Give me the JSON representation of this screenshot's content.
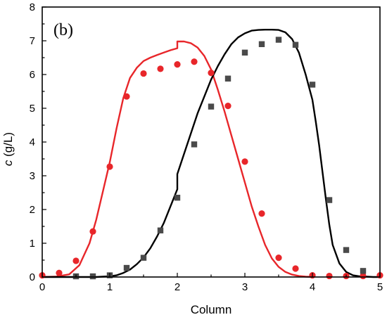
{
  "chart_data": {
    "type": "scatter",
    "panel_label": "(b)",
    "xlabel": "Column",
    "ylabel_italic": "c",
    "ylabel_units": " (g/L)",
    "xlim": [
      0,
      5
    ],
    "ylim": [
      0,
      8
    ],
    "xticks": [
      0,
      1,
      2,
      3,
      4,
      5
    ],
    "yticks": [
      0,
      1,
      2,
      3,
      4,
      5,
      6,
      7,
      8
    ],
    "grid": false,
    "legend": "none",
    "series": [
      {
        "kind": "points",
        "marker": "circle",
        "color": "#e8262a",
        "x": [
          0,
          0.25,
          0.5,
          0.75,
          1.0,
          1.25,
          1.5,
          1.75,
          2.0,
          2.25,
          2.5,
          2.75,
          3.0,
          3.25,
          3.5,
          3.75,
          4.0,
          4.25,
          4.5,
          4.75,
          5.0
        ],
        "y": [
          0.05,
          0.12,
          0.48,
          1.35,
          3.27,
          5.35,
          6.03,
          6.17,
          6.3,
          6.38,
          6.05,
          5.07,
          3.42,
          1.88,
          0.57,
          0.25,
          0.05,
          0.03,
          0.03,
          0.03,
          0.05
        ]
      },
      {
        "kind": "points",
        "marker": "square",
        "color": "#4a4a4a",
        "x": [
          0.5,
          0.75,
          1.0,
          1.25,
          1.5,
          1.75,
          2.0,
          2.25,
          2.5,
          2.75,
          3.0,
          3.25,
          3.5,
          3.75,
          4.0,
          4.25,
          4.5,
          4.75
        ],
        "y": [
          0.02,
          0.02,
          0.05,
          0.27,
          0.57,
          1.38,
          2.35,
          3.93,
          5.05,
          5.88,
          6.65,
          6.9,
          7.03,
          6.88,
          5.7,
          2.28,
          0.8,
          0.18
        ]
      },
      {
        "kind": "line",
        "color": "#e8262a",
        "x": [
          0,
          0.2,
          0.4,
          0.55,
          0.7,
          0.8,
          0.9,
          1.0,
          1.1,
          1.2,
          1.3,
          1.4,
          1.5,
          1.6,
          1.7,
          1.8,
          1.9,
          2.0,
          2.0,
          2.1,
          2.2,
          2.3,
          2.4,
          2.5,
          2.6,
          2.7,
          2.8,
          2.9,
          3.0,
          3.1,
          3.2,
          3.3,
          3.4,
          3.5,
          3.6,
          3.7,
          3.8,
          3.9,
          4.0
        ],
        "y": [
          0,
          0.01,
          0.08,
          0.35,
          1.0,
          1.7,
          2.55,
          3.4,
          4.4,
          5.3,
          5.9,
          6.2,
          6.4,
          6.5,
          6.58,
          6.65,
          6.72,
          6.78,
          6.98,
          6.98,
          6.93,
          6.8,
          6.55,
          6.15,
          5.55,
          4.9,
          4.2,
          3.5,
          2.8,
          2.1,
          1.5,
          0.95,
          0.55,
          0.3,
          0.15,
          0.07,
          0.03,
          0.01,
          0
        ]
      },
      {
        "kind": "line",
        "color": "#000000",
        "x": [
          0,
          0.8,
          1.0,
          1.1,
          1.2,
          1.3,
          1.4,
          1.5,
          1.6,
          1.7,
          1.8,
          1.9,
          2.0,
          2.0,
          2.1,
          2.2,
          2.3,
          2.4,
          2.5,
          2.6,
          2.7,
          2.8,
          2.9,
          3.0,
          3.1,
          3.2,
          3.3,
          3.4,
          3.5,
          3.6,
          3.7,
          3.8,
          3.9,
          4.0,
          4.05,
          4.1,
          4.15,
          4.2,
          4.25,
          4.3,
          4.4,
          4.5,
          4.6,
          4.7,
          4.8,
          4.9,
          5.0
        ],
        "y": [
          0,
          0,
          0.02,
          0.05,
          0.12,
          0.22,
          0.38,
          0.58,
          0.85,
          1.2,
          1.6,
          2.1,
          2.6,
          3.05,
          3.65,
          4.25,
          4.85,
          5.35,
          5.85,
          6.25,
          6.6,
          6.9,
          7.1,
          7.22,
          7.3,
          7.32,
          7.33,
          7.33,
          7.32,
          7.25,
          7.05,
          6.65,
          6.0,
          5.25,
          4.6,
          3.9,
          3.1,
          2.3,
          1.55,
          0.95,
          0.4,
          0.15,
          0.05,
          0.02,
          0.01,
          0,
          0
        ]
      }
    ]
  }
}
